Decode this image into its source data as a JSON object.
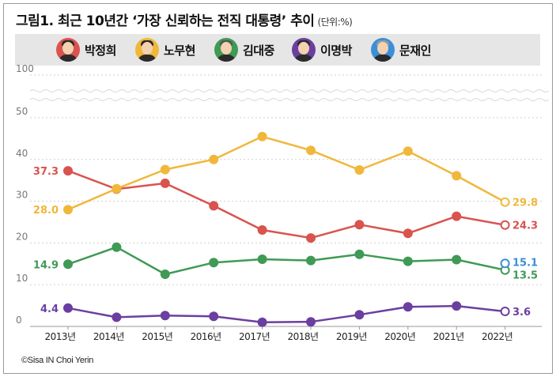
{
  "title": "그림1. 최근 10년간 ‘가장 신뢰하는 전직 대통령’ 추이",
  "unit": "(단위:%)",
  "credit": "©Sisa IN Choi Yerin",
  "legend": [
    {
      "name": "박정희",
      "color": "#d9534f"
    },
    {
      "name": "노무현",
      "color": "#f0b83a"
    },
    {
      "name": "김대중",
      "color": "#3f9a55"
    },
    {
      "name": "이명박",
      "color": "#6b3fa0"
    },
    {
      "name": "문재인",
      "color": "#3a8fd8"
    }
  ],
  "chart_data": {
    "type": "line",
    "title": "최근 10년간 ‘가장 신뢰하는 전직 대통령’ 추이",
    "ylabel": "%",
    "ylim": [
      0,
      100
    ],
    "axis_break": [
      50,
      100
    ],
    "grid": true,
    "yticks": [
      "0",
      "10",
      "20",
      "30",
      "40",
      "50",
      "100"
    ],
    "categories": [
      "2013년",
      "2014년",
      "2015년",
      "2016년",
      "2017년",
      "2018년",
      "2019년",
      "2020년",
      "2021년",
      "2022년"
    ],
    "series": [
      {
        "name": "박정희",
        "color": "#d9534f",
        "values": [
          37.3,
          32.9,
          34.3,
          28.9,
          23.1,
          21.2,
          24.4,
          22.3,
          26.4,
          24.3
        ],
        "start_label": "37.3",
        "end_label": "24.3"
      },
      {
        "name": "노무현",
        "color": "#f0b83a",
        "values": [
          28.0,
          33.0,
          37.6,
          40.0,
          45.5,
          42.2,
          37.5,
          42.0,
          36.1,
          29.8
        ],
        "start_label": "28.0",
        "end_label": "29.8"
      },
      {
        "name": "김대중",
        "color": "#3f9a55",
        "values": [
          14.9,
          19.0,
          12.5,
          15.3,
          16.1,
          15.8,
          17.3,
          15.6,
          16.0,
          13.5
        ],
        "start_label": "14.9",
        "end_label": "13.5"
      },
      {
        "name": "이명박",
        "color": "#6b3fa0",
        "values": [
          4.4,
          2.2,
          2.6,
          2.4,
          1.0,
          1.1,
          2.8,
          4.7,
          4.9,
          3.6
        ],
        "start_label": "4.4",
        "end_label": "3.6"
      },
      {
        "name": "문재인",
        "color": "#3a8fd8",
        "values": [
          null,
          null,
          null,
          null,
          null,
          null,
          null,
          null,
          null,
          15.1
        ],
        "start_label": "",
        "end_label": "15.1"
      }
    ]
  }
}
